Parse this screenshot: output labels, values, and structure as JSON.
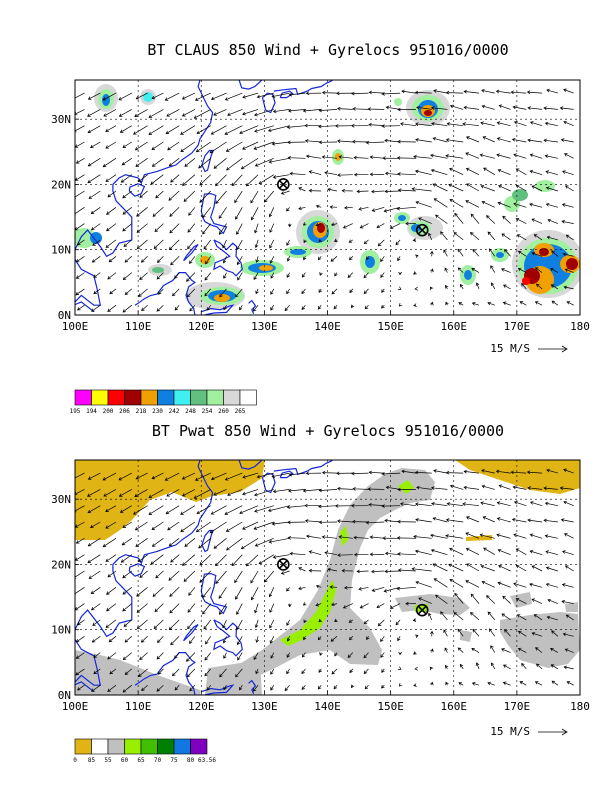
{
  "panels": [
    {
      "title": "BT CLAUS 850 Wind + Gyrelocs 951016/0000",
      "kind": "claus",
      "legend_labels": [
        "195",
        "194",
        "200",
        "206",
        "218",
        "230",
        "242",
        "248",
        "254",
        "260",
        "265"
      ],
      "legend_colors": [
        "#ff00ff",
        "#ffff00",
        "#ff0000",
        "#a00000",
        "#f0a000",
        "#1080e0",
        "#40f0f0",
        "#60c080",
        "#a0f0a0",
        "#d8d8d8",
        "#ffffff"
      ]
    },
    {
      "title": "BT Pwat 850 Wind + Gyrelocs 951016/0000",
      "kind": "pwat",
      "legend_labels": [
        "0",
        "85",
        "55",
        "60",
        "65",
        "70",
        "75",
        "80",
        "63.56"
      ],
      "legend_colors": [
        "#e0b414",
        "#ffffff",
        "#c0c0c0",
        "#98f000",
        "#40c000",
        "#008000",
        "#1078e0",
        "#8000c0"
      ]
    }
  ],
  "x_ticks": [
    "100E",
    "110E",
    "120E",
    "130E",
    "140E",
    "150E",
    "160E",
    "170E",
    "180"
  ],
  "y_ticks": [
    "0N",
    "10N",
    "20N",
    "30N"
  ],
  "vector_reference": "15 M/S",
  "gyre_locations": [
    {
      "lon": 133,
      "lat": 20
    },
    {
      "lon": 155,
      "lat": 13
    }
  ],
  "colors": {
    "coastline": "#1428d8",
    "frame": "#000000"
  },
  "chart_data": [
    {
      "type": "heatmap",
      "title": "BT CLAUS 850 Wind + Gyrelocs 951016/0000",
      "x_range": [
        100,
        180
      ],
      "y_range": [
        0,
        36
      ],
      "grid": true,
      "legend": [
        "195",
        "194",
        "200",
        "206",
        "218",
        "230",
        "242",
        "248",
        "254",
        "260",
        "265"
      ],
      "gyrelocs": [
        [
          133,
          20
        ],
        [
          155,
          13
        ]
      ]
    },
    {
      "type": "heatmap",
      "title": "BT Pwat 850 Wind + Gyrelocs 951016/0000",
      "x_range": [
        100,
        180
      ],
      "y_range": [
        0,
        36
      ],
      "grid": true,
      "legend": [
        "0",
        "85",
        "55",
        "60",
        "65",
        "70",
        "75",
        "80",
        "63.56"
      ],
      "gyrelocs": [
        [
          133,
          20
        ],
        [
          155,
          13
        ]
      ]
    }
  ]
}
